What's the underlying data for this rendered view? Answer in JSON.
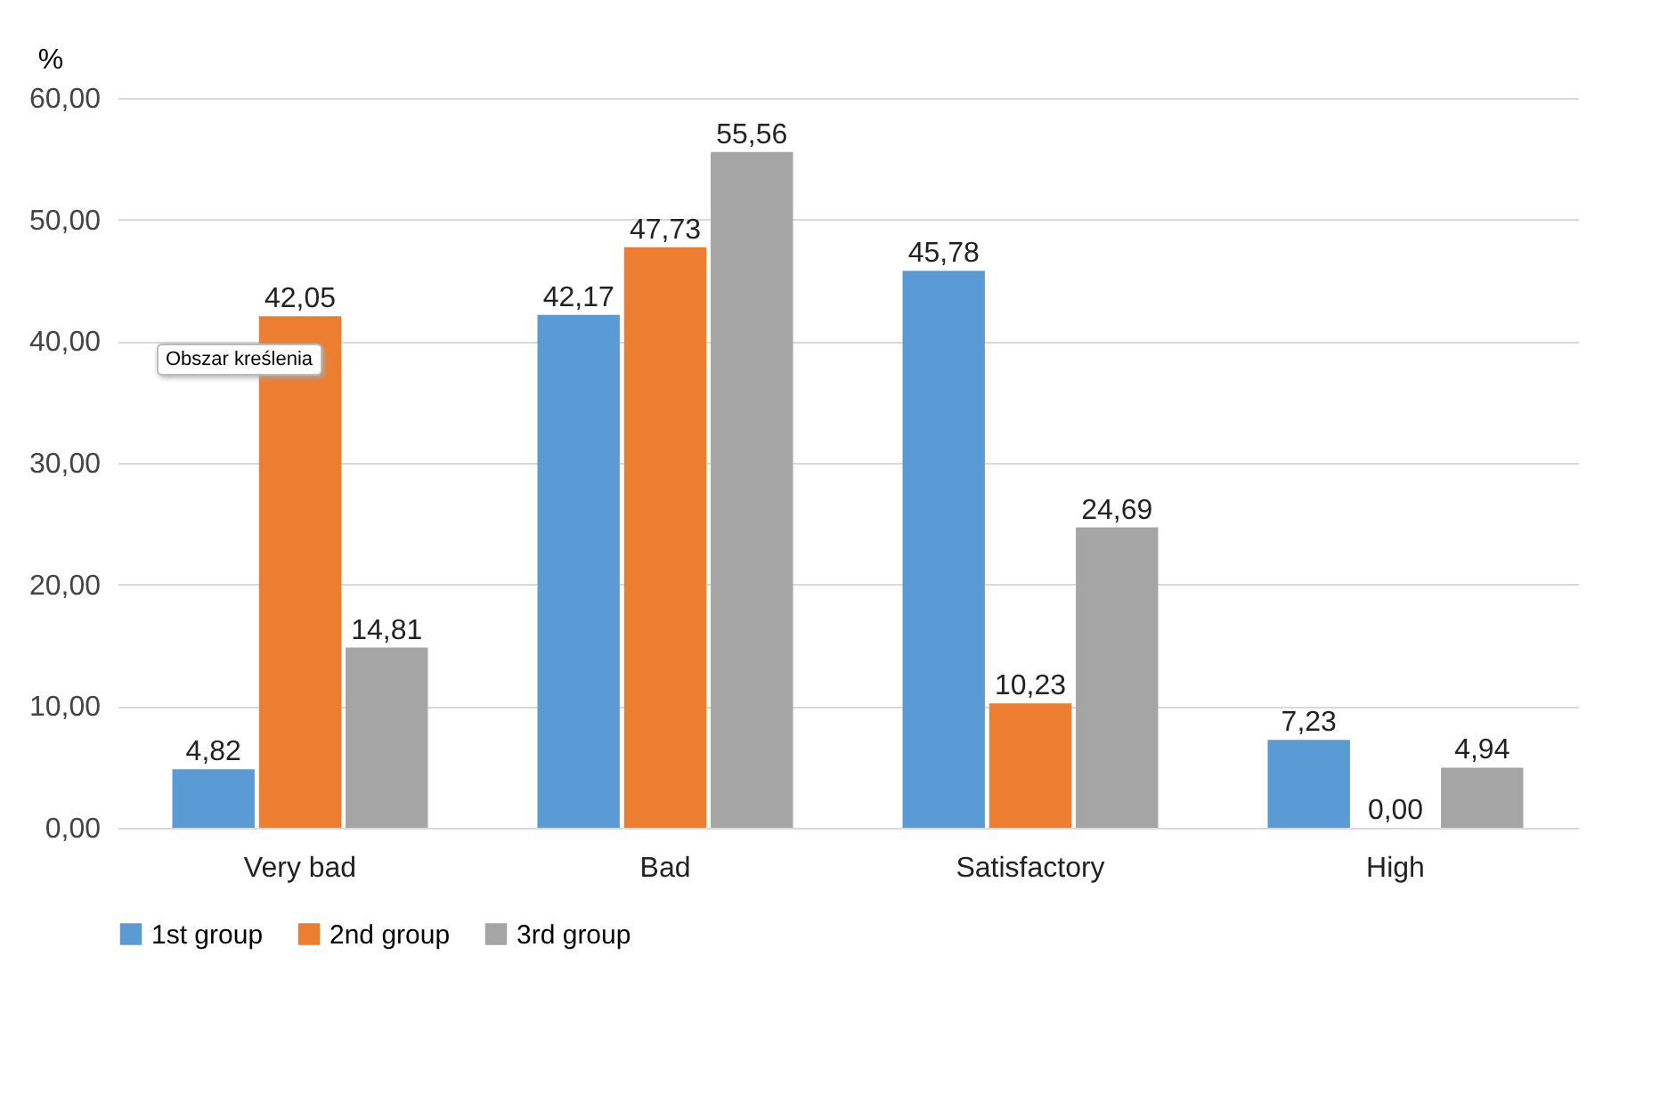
{
  "chart_data": {
    "type": "bar",
    "ylabel": "%",
    "categories": [
      "Very bad",
      "Bad",
      "Satisfactory",
      "High"
    ],
    "series": [
      {
        "name": "1st group",
        "color": "#5b9bd5",
        "values": [
          4.82,
          42.17,
          45.78,
          7.23
        ],
        "value_labels": [
          "4,82",
          "42,17",
          "45,78",
          "7,23"
        ]
      },
      {
        "name": "2nd group",
        "color": "#ed7d31",
        "values": [
          42.05,
          47.73,
          10.23,
          0
        ],
        "value_labels": [
          "42,05",
          "47,73",
          "10,23",
          "0,00"
        ]
      },
      {
        "name": "3rd group",
        "color": "#a5a5a5",
        "values": [
          14.81,
          55.56,
          24.69,
          4.94
        ],
        "value_labels": [
          "14,81",
          "55,56",
          "24,69",
          "4,94"
        ]
      }
    ],
    "ylim": [
      0,
      60
    ],
    "yticks": [
      {
        "value": 0,
        "label": "0,00"
      },
      {
        "value": 10,
        "label": "10,00"
      },
      {
        "value": 20,
        "label": "20,00"
      },
      {
        "value": 30,
        "label": "30,00"
      },
      {
        "value": 40,
        "label": "40,00"
      },
      {
        "value": 50,
        "label": "50,00"
      },
      {
        "value": 60,
        "label": "60,00"
      }
    ],
    "grid": "y",
    "legend": "bottom",
    "annotations": [
      "Obszar kreślenia"
    ]
  }
}
